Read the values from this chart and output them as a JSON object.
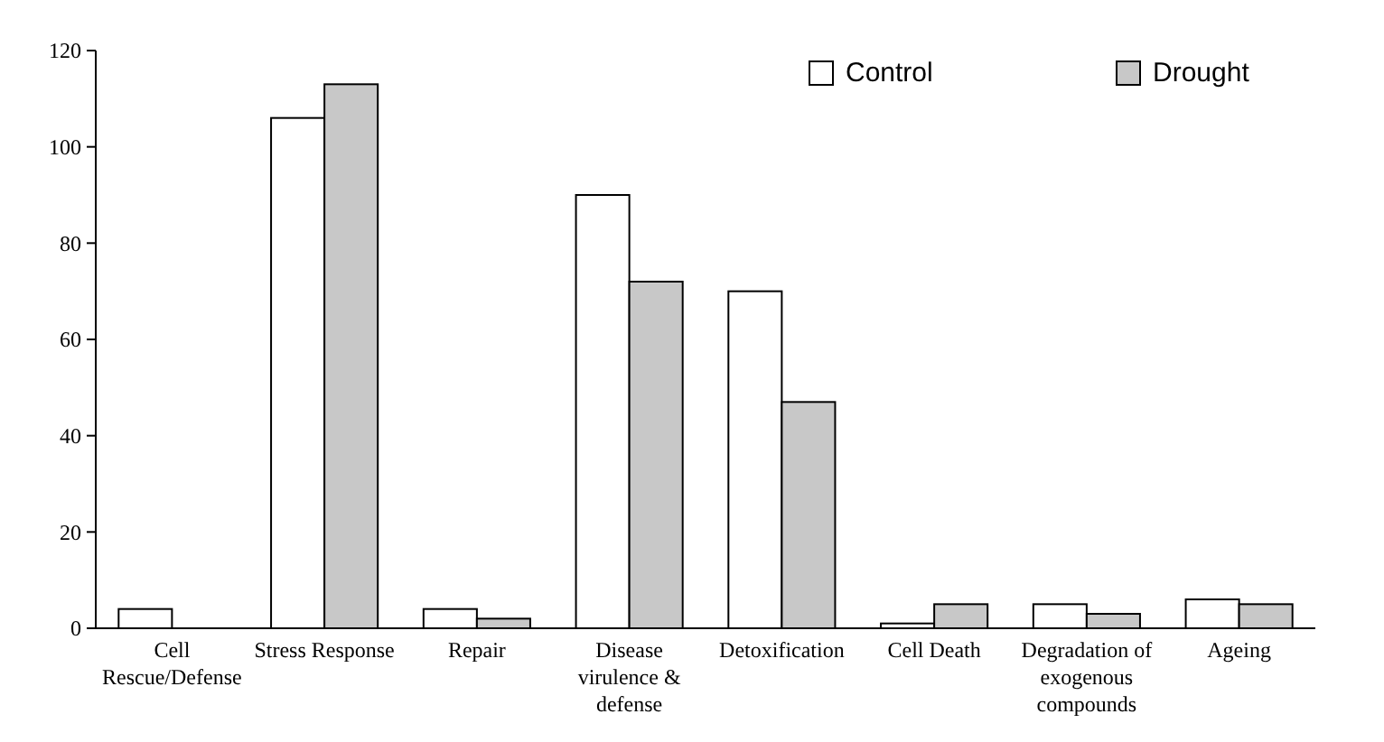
{
  "chart_data": {
    "type": "bar",
    "categories": [
      "Cell Rescue/Defense",
      "Stress Response",
      "Repair",
      "Disease virulence & defense",
      "Detoxification",
      "Cell Death",
      "Degradation of exogenous compounds",
      "Ageing"
    ],
    "series": [
      {
        "name": "Control",
        "color": "#ffffff",
        "values": [
          4,
          106,
          4,
          90,
          70,
          1,
          5,
          6
        ]
      },
      {
        "name": "Drought",
        "color": "#c8c8c8",
        "values": [
          0,
          113,
          2,
          72,
          47,
          5,
          3,
          5
        ]
      }
    ],
    "ylim": [
      0,
      120
    ],
    "yticks": [
      0,
      20,
      40,
      60,
      80,
      100,
      120
    ],
    "grid": false,
    "legend": "top right"
  }
}
